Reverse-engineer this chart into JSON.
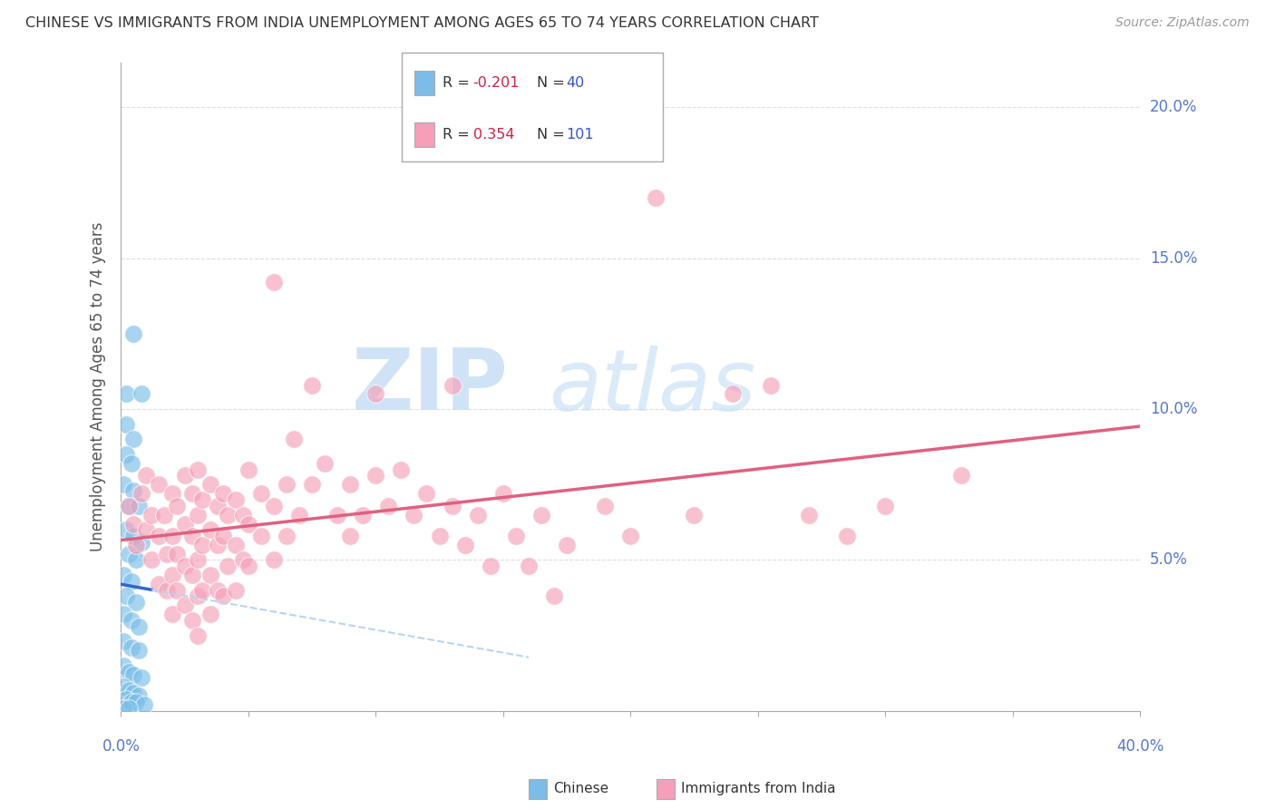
{
  "title": "CHINESE VS IMMIGRANTS FROM INDIA UNEMPLOYMENT AMONG AGES 65 TO 74 YEARS CORRELATION CHART",
  "source": "Source: ZipAtlas.com",
  "ylabel": "Unemployment Among Ages 65 to 74 years",
  "legend_label_chinese": "Chinese",
  "legend_label_india": "Immigrants from India",
  "legend_R_chinese": "R = -0.201",
  "legend_N_chinese": "N =  40",
  "legend_R_india": "R =  0.354",
  "legend_N_india": "N = 101",
  "yticks": [
    0.0,
    0.05,
    0.1,
    0.15,
    0.2
  ],
  "ytick_labels": [
    "",
    "5.0%",
    "10.0%",
    "15.0%",
    "20.0%"
  ],
  "xlim": [
    0.0,
    0.4
  ],
  "ylim": [
    0.0,
    0.215
  ],
  "chinese_color": "#7bbde8",
  "india_color": "#f5a0b8",
  "chinese_line_color": "#3366cc",
  "india_line_color": "#e06080",
  "chinese_dash_color": "#b8d4f0",
  "watermark_color": "#c8dff5",
  "grid_color": "#d8dde8",
  "chinese_R": -0.201,
  "india_R": 0.354,
  "chinese_N": 40,
  "india_N": 101,
  "chinese_points": [
    [
      0.005,
      0.125
    ],
    [
      0.002,
      0.105
    ],
    [
      0.008,
      0.105
    ],
    [
      0.002,
      0.095
    ],
    [
      0.005,
      0.09
    ],
    [
      0.002,
      0.085
    ],
    [
      0.004,
      0.082
    ],
    [
      0.001,
      0.075
    ],
    [
      0.005,
      0.073
    ],
    [
      0.003,
      0.068
    ],
    [
      0.007,
      0.068
    ],
    [
      0.002,
      0.06
    ],
    [
      0.005,
      0.058
    ],
    [
      0.008,
      0.056
    ],
    [
      0.003,
      0.052
    ],
    [
      0.006,
      0.05
    ],
    [
      0.001,
      0.045
    ],
    [
      0.004,
      0.043
    ],
    [
      0.002,
      0.038
    ],
    [
      0.006,
      0.036
    ],
    [
      0.001,
      0.032
    ],
    [
      0.004,
      0.03
    ],
    [
      0.007,
      0.028
    ],
    [
      0.001,
      0.023
    ],
    [
      0.004,
      0.021
    ],
    [
      0.007,
      0.02
    ],
    [
      0.001,
      0.015
    ],
    [
      0.003,
      0.013
    ],
    [
      0.005,
      0.012
    ],
    [
      0.008,
      0.011
    ],
    [
      0.001,
      0.008
    ],
    [
      0.003,
      0.007
    ],
    [
      0.005,
      0.006
    ],
    [
      0.007,
      0.005
    ],
    [
      0.002,
      0.004
    ],
    [
      0.004,
      0.003
    ],
    [
      0.006,
      0.003
    ],
    [
      0.009,
      0.002
    ],
    [
      0.001,
      0.001
    ],
    [
      0.003,
      0.001
    ]
  ],
  "india_points": [
    [
      0.003,
      0.068
    ],
    [
      0.005,
      0.062
    ],
    [
      0.006,
      0.055
    ],
    [
      0.008,
      0.072
    ],
    [
      0.01,
      0.078
    ],
    [
      0.01,
      0.06
    ],
    [
      0.012,
      0.065
    ],
    [
      0.012,
      0.05
    ],
    [
      0.015,
      0.075
    ],
    [
      0.015,
      0.058
    ],
    [
      0.015,
      0.042
    ],
    [
      0.017,
      0.065
    ],
    [
      0.018,
      0.052
    ],
    [
      0.018,
      0.04
    ],
    [
      0.02,
      0.072
    ],
    [
      0.02,
      0.058
    ],
    [
      0.02,
      0.045
    ],
    [
      0.02,
      0.032
    ],
    [
      0.022,
      0.068
    ],
    [
      0.022,
      0.052
    ],
    [
      0.022,
      0.04
    ],
    [
      0.025,
      0.078
    ],
    [
      0.025,
      0.062
    ],
    [
      0.025,
      0.048
    ],
    [
      0.025,
      0.035
    ],
    [
      0.028,
      0.072
    ],
    [
      0.028,
      0.058
    ],
    [
      0.028,
      0.045
    ],
    [
      0.028,
      0.03
    ],
    [
      0.03,
      0.08
    ],
    [
      0.03,
      0.065
    ],
    [
      0.03,
      0.05
    ],
    [
      0.03,
      0.038
    ],
    [
      0.03,
      0.025
    ],
    [
      0.032,
      0.07
    ],
    [
      0.032,
      0.055
    ],
    [
      0.032,
      0.04
    ],
    [
      0.035,
      0.075
    ],
    [
      0.035,
      0.06
    ],
    [
      0.035,
      0.045
    ],
    [
      0.035,
      0.032
    ],
    [
      0.038,
      0.068
    ],
    [
      0.038,
      0.055
    ],
    [
      0.038,
      0.04
    ],
    [
      0.04,
      0.072
    ],
    [
      0.04,
      0.058
    ],
    [
      0.04,
      0.038
    ],
    [
      0.042,
      0.065
    ],
    [
      0.042,
      0.048
    ],
    [
      0.045,
      0.07
    ],
    [
      0.045,
      0.055
    ],
    [
      0.045,
      0.04
    ],
    [
      0.048,
      0.065
    ],
    [
      0.048,
      0.05
    ],
    [
      0.05,
      0.08
    ],
    [
      0.05,
      0.062
    ],
    [
      0.05,
      0.048
    ],
    [
      0.055,
      0.072
    ],
    [
      0.055,
      0.058
    ],
    [
      0.06,
      0.142
    ],
    [
      0.06,
      0.068
    ],
    [
      0.06,
      0.05
    ],
    [
      0.065,
      0.075
    ],
    [
      0.065,
      0.058
    ],
    [
      0.068,
      0.09
    ],
    [
      0.07,
      0.065
    ],
    [
      0.075,
      0.108
    ],
    [
      0.075,
      0.075
    ],
    [
      0.08,
      0.082
    ],
    [
      0.085,
      0.065
    ],
    [
      0.09,
      0.075
    ],
    [
      0.09,
      0.058
    ],
    [
      0.095,
      0.065
    ],
    [
      0.1,
      0.105
    ],
    [
      0.1,
      0.078
    ],
    [
      0.105,
      0.068
    ],
    [
      0.11,
      0.08
    ],
    [
      0.115,
      0.065
    ],
    [
      0.12,
      0.072
    ],
    [
      0.125,
      0.058
    ],
    [
      0.13,
      0.108
    ],
    [
      0.13,
      0.068
    ],
    [
      0.135,
      0.055
    ],
    [
      0.14,
      0.065
    ],
    [
      0.145,
      0.048
    ],
    [
      0.15,
      0.072
    ],
    [
      0.155,
      0.058
    ],
    [
      0.16,
      0.048
    ],
    [
      0.165,
      0.065
    ],
    [
      0.17,
      0.038
    ],
    [
      0.175,
      0.055
    ],
    [
      0.19,
      0.068
    ],
    [
      0.2,
      0.058
    ],
    [
      0.21,
      0.17
    ],
    [
      0.225,
      0.065
    ],
    [
      0.24,
      0.105
    ],
    [
      0.255,
      0.108
    ],
    [
      0.27,
      0.065
    ],
    [
      0.285,
      0.058
    ],
    [
      0.3,
      0.068
    ],
    [
      0.33,
      0.078
    ]
  ]
}
